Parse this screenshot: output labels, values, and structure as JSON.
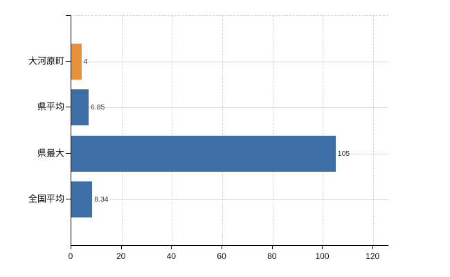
{
  "chart_data": {
    "type": "bar",
    "orientation": "horizontal",
    "categories": [
      "大河原町",
      "県平均",
      "県最大",
      "全国平均"
    ],
    "values": [
      4,
      6.85,
      105,
      8.34
    ],
    "value_labels": [
      "4",
      "6.85",
      "105",
      "8.34"
    ],
    "series": [
      {
        "name": "highlight",
        "color": "#e8913d",
        "applies_to": [
          "大河原町"
        ]
      },
      {
        "name": "reference",
        "color": "#3e6ea6",
        "applies_to": [
          "県平均",
          "県最大",
          "全国平均"
        ]
      }
    ],
    "bar_colors": [
      "#e8913d",
      "#3e6ea6",
      "#3e6ea6",
      "#3e6ea6"
    ],
    "x_tick_values": [
      0,
      20,
      40,
      60,
      80,
      100,
      120
    ],
    "x_tick_labels": [
      "0",
      "20",
      "40",
      "60",
      "80",
      "100",
      "120"
    ],
    "xlim": [
      0,
      126
    ],
    "grid": true,
    "legend": "none",
    "title": ""
  },
  "colors": {
    "background": "#ffffff",
    "axis": "#000000",
    "gridline": "#d2d8d2",
    "bar_orange": "#e8913d",
    "bar_blue": "#3e6ea6",
    "value_label_text": "#2e2e2e",
    "tick_label_text": "#111111"
  }
}
